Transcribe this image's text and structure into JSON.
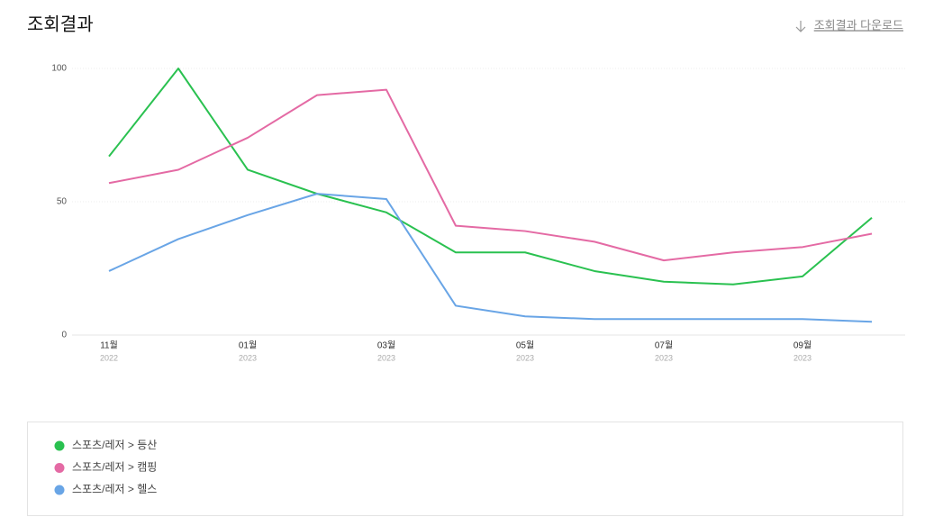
{
  "chart_data": {
    "type": "line",
    "title": "조회결과",
    "download_label": "조회결과 다운로드",
    "categories": [
      "11월",
      null,
      "01월",
      null,
      "03월",
      null,
      "05월",
      null,
      "07월",
      null,
      "09월",
      null
    ],
    "category_years": [
      "2022",
      null,
      "2023",
      null,
      "2023",
      null,
      "2023",
      null,
      "2023",
      null,
      "2023",
      null
    ],
    "ylim": [
      0,
      100
    ],
    "yticks": [
      0,
      50,
      100
    ],
    "grid": true,
    "series": [
      {
        "name": "스포츠/레저 > 등산",
        "color": "#2ac150",
        "values": [
          67,
          100,
          62,
          53,
          46,
          31,
          31,
          24,
          20,
          19,
          22,
          44
        ]
      },
      {
        "name": "스포츠/레저 > 캠핑",
        "color": "#e46aa4",
        "values": [
          57,
          62,
          74,
          90,
          92,
          41,
          39,
          35,
          28,
          31,
          33,
          38
        ]
      },
      {
        "name": "스포츠/레저 > 헬스",
        "color": "#69a5e6",
        "values": [
          24,
          36,
          45,
          53,
          51,
          11,
          7,
          6,
          6,
          6,
          6,
          5
        ]
      }
    ]
  }
}
